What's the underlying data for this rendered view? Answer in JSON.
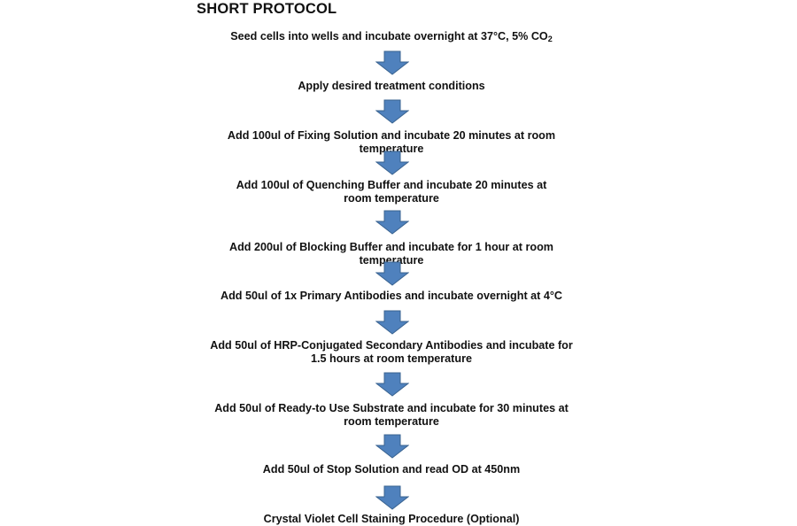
{
  "title": "SHORT PROTOCOL",
  "arrow_color": "#4f81bd",
  "steps": [
    {
      "text": "Seed cells into wells and incubate overnight at 37°C, 5% CO",
      "sub": "2"
    },
    {
      "text": "Apply desired treatment conditions"
    },
    {
      "text": "Add 100ul of Fixing Solution and incubate 20 minutes at room temperature"
    },
    {
      "text": "Add 100ul of Quenching Buffer and incubate 20 minutes at room temperature"
    },
    {
      "text": "Add 200ul of Blocking Buffer and incubate for 1 hour at room temperature"
    },
    {
      "text": "Add 50ul of 1x Primary Antibodies and incubate overnight at 4°C"
    },
    {
      "text": "Add 50ul of HRP-Conjugated Secondary Antibodies and incubate for 1.5 hours at room temperature"
    },
    {
      "text": "Add 50ul of Ready-to Use Substrate and incubate for 30 minutes at room temperature"
    },
    {
      "text": "Add 50ul of Stop Solution and read OD at 450nm"
    },
    {
      "text": "Crystal Violet Cell Staining Procedure (Optional)"
    }
  ]
}
